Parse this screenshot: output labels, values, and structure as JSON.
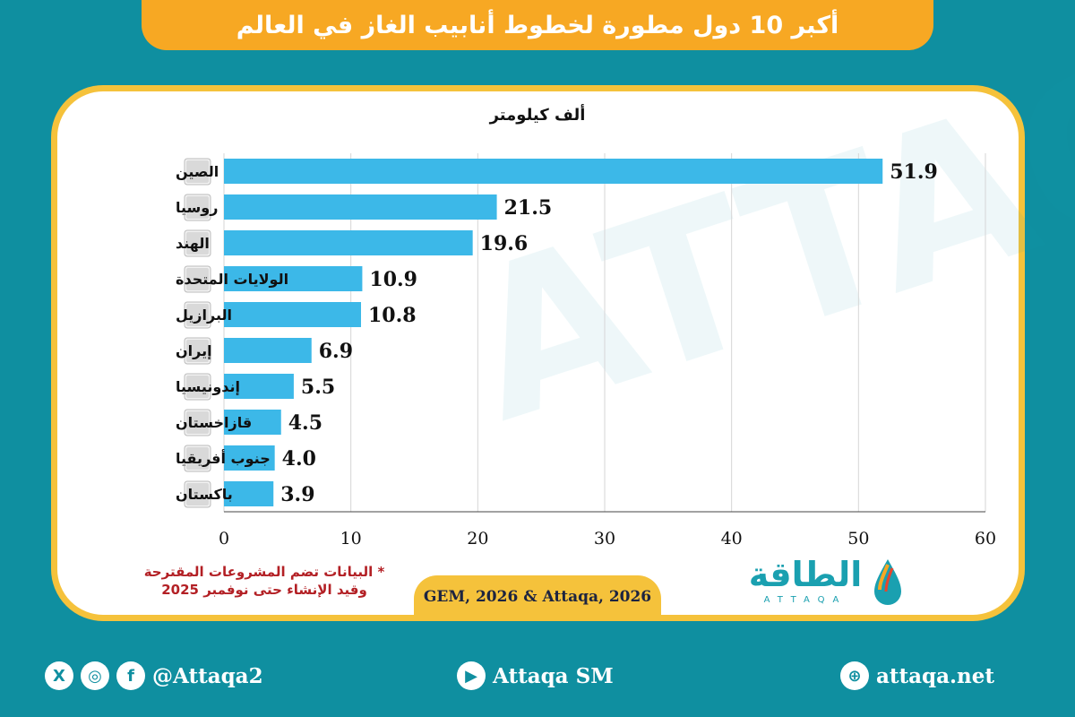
{
  "title": "أكبر 10 دول مطورة لخطوط أنابيب الغاز في العالم",
  "chart_data": {
    "type": "bar",
    "orientation": "horizontal",
    "unit_label": "ألف كيلومتر",
    "categories": [
      "الصين",
      "روسيا",
      "الهند",
      "الولايات المتحدة",
      "البرازيل",
      "إيران",
      "إندونيسيا",
      "قازاخستان",
      "جنوب أفريقيا",
      "باكستان"
    ],
    "values": [
      51.9,
      21.5,
      19.6,
      10.9,
      10.8,
      6.9,
      5.5,
      4.5,
      4.0,
      3.9
    ],
    "value_labels": [
      "51.9",
      "21.5",
      "19.6",
      "10.9",
      "10.8",
      "6.9",
      "5.5",
      "4.5",
      "4.0",
      "3.9"
    ],
    "xlim": [
      0,
      60
    ],
    "xticks": [
      0,
      10,
      20,
      30,
      40,
      50,
      60
    ],
    "grid": true,
    "bar_color": "#3cb8e8"
  },
  "note": {
    "line1": "* البيانات تضم المشروعات المقترحة",
    "line2": "وقيد الإنشاء حتى نوفمبر 2025"
  },
  "source": "GEM, 2026 & Attaqa, 2026",
  "logo": {
    "arabic": "الطاقة",
    "english": "ATTAQA"
  },
  "footer": {
    "social_handle": "@Attaqa2",
    "youtube": "Attaqa SM",
    "website": "attaqa.net"
  },
  "colors": {
    "background": "#0f8fa0",
    "title_bar": "#f7a823",
    "card_border": "#f5c23b",
    "note_text": "#b32025"
  }
}
